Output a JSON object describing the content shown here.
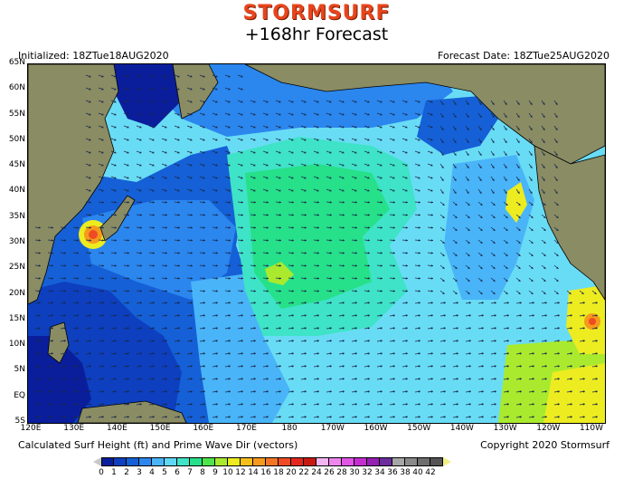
{
  "header": {
    "logo_text": "STORMSURF",
    "title": "+168hr Forecast",
    "initialized": "Initialized: 18ZTue18AUG2020",
    "forecast_date": "Forecast Date: 18ZTue25AUG2020"
  },
  "footer": {
    "description": "Calculated Surf Height (ft) and Prime Wave Dir (vectors)",
    "copyright": "Copyright 2020 Stormsurf"
  },
  "axes": {
    "latitude_labels": [
      "65N",
      "60N",
      "55N",
      "50N",
      "45N",
      "40N",
      "35N",
      "30N",
      "25N",
      "20N",
      "15N",
      "10N",
      "5N",
      "EQ",
      "5S"
    ],
    "longitude_labels": [
      "120E",
      "130E",
      "140E",
      "150E",
      "160E",
      "170E",
      "180",
      "170W",
      "160W",
      "150W",
      "140W",
      "130W",
      "120W",
      "110W"
    ]
  },
  "legend": {
    "units": "ft",
    "labels": [
      "0",
      "1",
      "2",
      "3",
      "4",
      "5",
      "6",
      "7",
      "8",
      "9",
      "10",
      "12",
      "14",
      "16",
      "18",
      "20",
      "22",
      "24",
      "26",
      "28",
      "30",
      "32",
      "34",
      "36",
      "38",
      "40",
      "42"
    ],
    "colors": [
      "#0a1e9c",
      "#0d3fbf",
      "#1560d6",
      "#2b86ee",
      "#49b4f8",
      "#5fd7f7",
      "#3fe3c7",
      "#27e08a",
      "#4ee44a",
      "#a9ea2e",
      "#ecec20",
      "#f5c01a",
      "#f59a1c",
      "#f27524",
      "#ef4a23",
      "#e3271e",
      "#c81812",
      "#f3b6f3",
      "#ef86ee",
      "#e355e6",
      "#c42ed0",
      "#9620b3",
      "#6d2c9c",
      "#a6a6a6",
      "#8a8a8a",
      "#6e6e6e",
      "#545454"
    ]
  },
  "map": {
    "region": "North Pacific",
    "colors": {
      "land": "#8a8c64",
      "deep_blue": "#0a1e9c",
      "blue": "#1560d6",
      "mid_blue": "#2b86ee",
      "light_blue": "#49b4f8",
      "cyan": "#69dcf5",
      "aqua": "#3fe3c7",
      "green": "#27e08a",
      "yellow_green": "#a9ea2e",
      "yellow": "#ecec20",
      "orange": "#f59a1c",
      "red": "#ef4a23"
    }
  }
}
